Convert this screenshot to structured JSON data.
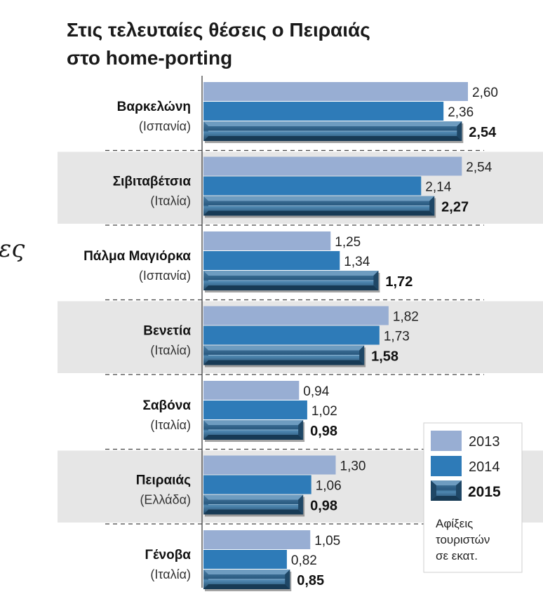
{
  "chart_data": {
    "type": "bar",
    "orientation": "horizontal",
    "title": "Στις τελευταίες θέσεις ο Πειραιάς",
    "subtitle": "στο home-porting",
    "categories": [
      {
        "name": "Βαρκελώνη",
        "country": "(Ισπανία)"
      },
      {
        "name": "Σιβιταβέτσια",
        "country": "(Ιταλία)"
      },
      {
        "name": "Πάλμα Μαγιόρκα",
        "country": "(Ισπανία)"
      },
      {
        "name": "Βενετία",
        "country": "(Ιταλία)"
      },
      {
        "name": "Σαβόνα",
        "country": "(Ιταλία)"
      },
      {
        "name": "Πειραιάς",
        "country": "(Ελλάδα)"
      },
      {
        "name": "Γένοβα",
        "country": "(Ιταλία)"
      }
    ],
    "series": [
      {
        "name": "2013",
        "color": "#98aed3",
        "values": [
          2.6,
          2.54,
          1.25,
          1.82,
          0.94,
          1.3,
          1.05
        ]
      },
      {
        "name": "2014",
        "color": "#2e7bb8",
        "values": [
          2.36,
          2.14,
          1.34,
          1.73,
          1.02,
          1.06,
          0.82
        ]
      },
      {
        "name": "2015",
        "color": "#2a5a80",
        "values": [
          2.54,
          2.27,
          1.72,
          1.58,
          0.98,
          0.98,
          0.85
        ]
      }
    ],
    "value_labels": [
      [
        "2,60",
        "2,36",
        "2,54"
      ],
      [
        "2,54",
        "2,14",
        "2,27"
      ],
      [
        "1,25",
        "1,34",
        "1,72"
      ],
      [
        "1,82",
        "1,73",
        "1,58"
      ],
      [
        "0,94",
        "1,02",
        "0,98"
      ],
      [
        "1,30",
        "1,06",
        "0,98"
      ],
      [
        "1,05",
        "0,82",
        "0,85"
      ]
    ],
    "legend": {
      "placement": "bottom-right",
      "entries": [
        "2013",
        "2014",
        "2015"
      ],
      "note": [
        "Αφίξεις",
        "τουριστών",
        "σε εκατ."
      ]
    },
    "xlim": [
      0,
      2.6
    ],
    "grid": false
  },
  "margin_text": "ες"
}
